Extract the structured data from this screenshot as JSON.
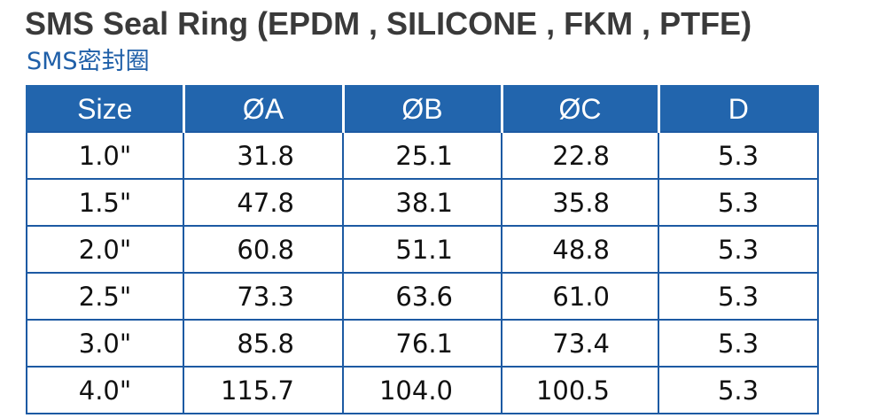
{
  "title": "SMS Seal Ring (EPDM , SILICONE , FKM , PTFE)",
  "subtitle": "SMS密封圈",
  "table": {
    "headers": [
      "Size",
      "ØA",
      "ØB",
      "ØC",
      "D"
    ],
    "rows": [
      [
        "1.0\"",
        "31.8",
        "25.1",
        "22.8",
        "5.3"
      ],
      [
        "1.5\"",
        "47.8",
        "38.1",
        "35.8",
        "5.3"
      ],
      [
        "2.0\"",
        "60.8",
        "51.1",
        "48.8",
        "5.3"
      ],
      [
        "2.5\"",
        "73.3",
        "63.6",
        "61.0",
        "5.3"
      ],
      [
        "3.0\"",
        "85.8",
        "76.1",
        "73.4",
        "5.3"
      ],
      [
        "4.0\"",
        "115.7",
        "104.0",
        "100.5",
        "5.3"
      ]
    ]
  },
  "colors": {
    "header_bg": "#2265ad",
    "subtitle": "#1f5fa8",
    "title": "#3a3a3a"
  }
}
